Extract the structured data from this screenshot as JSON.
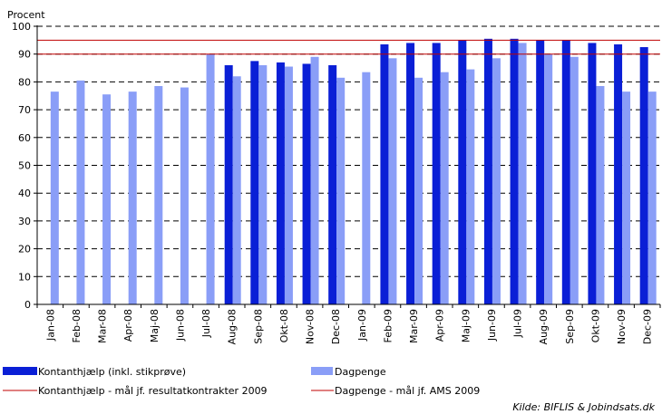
{
  "chart_data": {
    "type": "bar",
    "ylabel": "Procent",
    "ylim": [
      0,
      100
    ],
    "yticks": [
      0,
      10,
      20,
      30,
      40,
      50,
      60,
      70,
      80,
      90,
      100
    ],
    "grid": "horizontal-dashed",
    "legend_position": "bottom",
    "categories": [
      "Jan-08",
      "Feb-08",
      "Mar-08",
      "Apr-08",
      "Maj-08",
      "Jun-08",
      "Jul-08",
      "Aug-08",
      "Sep-08",
      "Okt-08",
      "Nov-08",
      "Dec-08",
      "Jan-09",
      "Feb-09",
      "Mar-09",
      "Apr-09",
      "Maj-09",
      "Jun-09",
      "Jul-09",
      "Aug-09",
      "Sep-09",
      "Okt-09",
      "Nov-09",
      "Dec-09"
    ],
    "series": [
      {
        "name": "Kontanthjælp (inkl. stikprøve)",
        "color": "#0a1fd6",
        "values": [
          null,
          null,
          null,
          null,
          null,
          null,
          null,
          86,
          87.5,
          87,
          86.5,
          86,
          null,
          93.5,
          94,
          94,
          95,
          95.5,
          95.5,
          95,
          95,
          94,
          93.5,
          92.5
        ]
      },
      {
        "name": "Dagpenge",
        "color": "#8a9ef7",
        "values": [
          76.5,
          80.5,
          75.5,
          76.5,
          78.5,
          78,
          90,
          82,
          86,
          85.5,
          89,
          81.5,
          83.5,
          88.5,
          81.5,
          83.5,
          84.5,
          88.5,
          94,
          90,
          89,
          78.5,
          76.5,
          76.5
        ]
      }
    ],
    "target_lines": [
      {
        "name": "Kontanthjælp - mål jf. resultatkontrakter 2009",
        "color": "#c00000",
        "value": 95
      },
      {
        "name": "Dagpenge - mål jf. AMS 2009",
        "color": "#c00000",
        "value": 90
      }
    ],
    "source": "Kilde: BIFLIS & Jobindsats.dk"
  }
}
